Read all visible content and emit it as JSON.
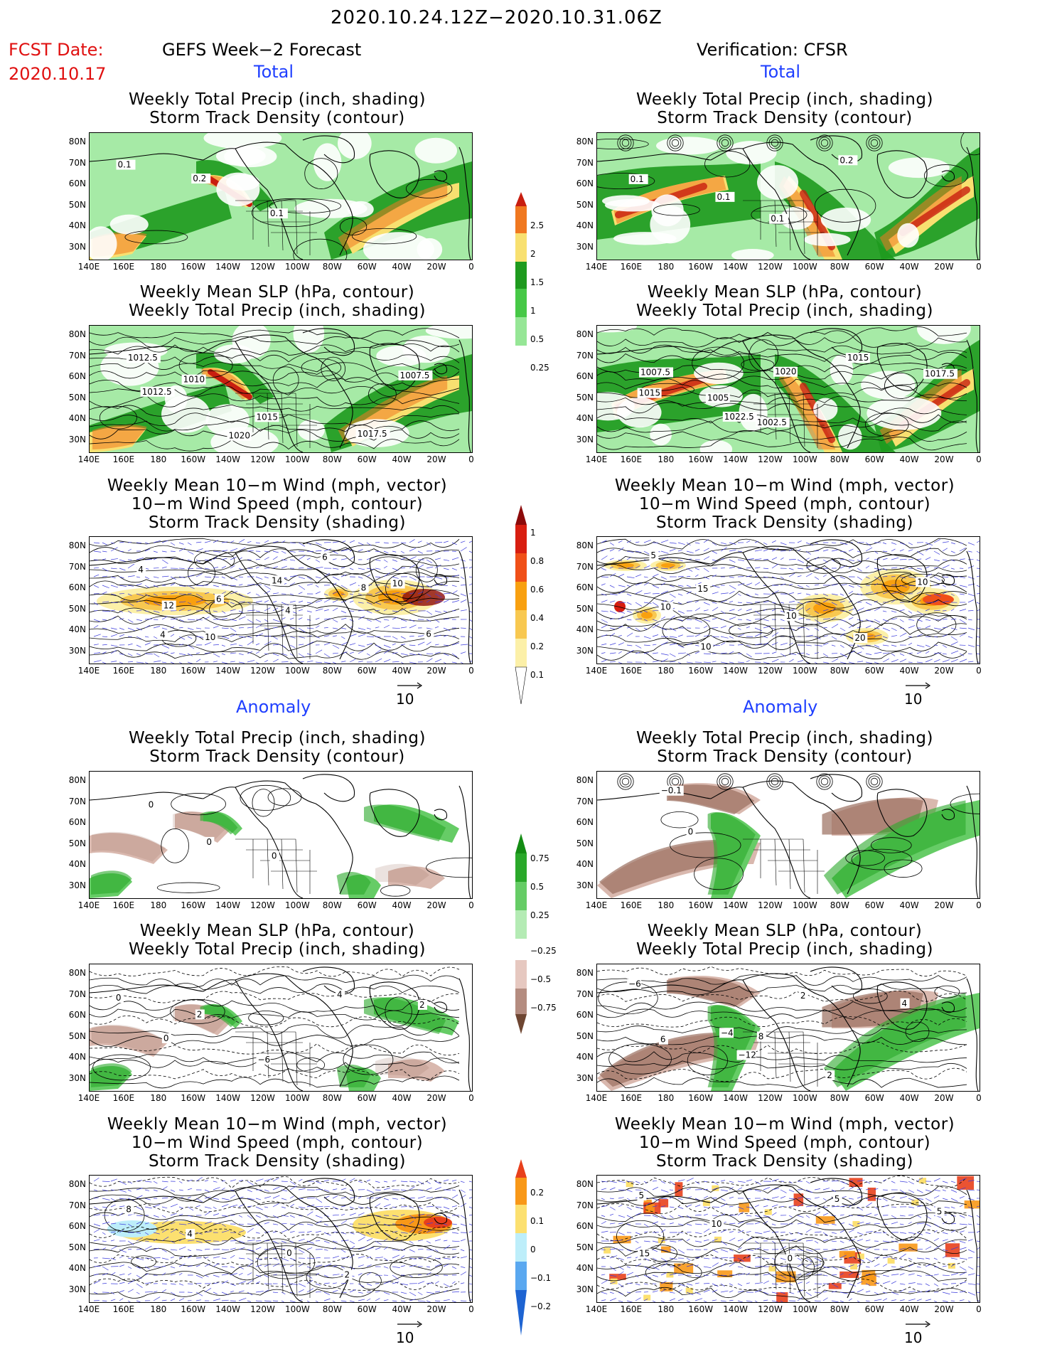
{
  "header": {
    "period": "2020.10.24.12Z−2020.10.31.06Z",
    "fcst_label": "FCST Date:",
    "fcst_date": "2020.10.17",
    "left_title": "GEFS Week−2 Forecast",
    "right_title": "Verification: CFSR"
  },
  "sections": {
    "total": "Total",
    "anomaly": "Anomaly"
  },
  "panel_titles": {
    "precip_storm": [
      "Weekly Total Precip (inch, shading)",
      "Storm Track Density (contour)"
    ],
    "slp_precip": [
      "Weekly Mean SLP (hPa, contour)",
      "Weekly Total Precip (inch, shading)"
    ],
    "wind": [
      "Weekly Mean 10−m Wind (mph, vector)",
      "10−m Wind Speed (mph, contour)",
      "Storm Track Density (shading)"
    ]
  },
  "axes": {
    "lat_labels": [
      "80N",
      "70N",
      "60N",
      "50N",
      "40N",
      "30N"
    ],
    "lon_labels": [
      "140E",
      "160E",
      "180",
      "160W",
      "140W",
      "120W",
      "100W",
      "80W",
      "60W",
      "40W",
      "20W",
      "0"
    ]
  },
  "vector_ref": "10",
  "colorbars": {
    "precip_total": [
      "2.5",
      "2",
      "1.5",
      "1",
      "0.5",
      "0.25"
    ],
    "storm_total": [
      "1",
      "0.8",
      "0.6",
      "0.4",
      "0.2",
      "0.1"
    ],
    "precip_anom": [
      "0.75",
      "0.5",
      "0.25",
      "−0.25",
      "−0.5",
      "−0.75"
    ],
    "storm_anom": [
      "0.2",
      "0.1",
      "0",
      "−0.1",
      "−0.2"
    ]
  },
  "contour_labels": {
    "p1_left": [
      "0.1",
      "0.2",
      "0.1"
    ],
    "p1_right": [
      "0.1",
      "0.1",
      "0.1",
      "0.2"
    ],
    "p2_left": [
      "1012.5",
      "1010",
      "1015",
      "1017.5",
      "1007.5",
      "1012.5",
      "1020"
    ],
    "p2_right": [
      "1007.5",
      "1005",
      "1002.5",
      "1015",
      "1017.5",
      "1015",
      "1022.5",
      "1020"
    ],
    "p3_left": [
      "4",
      "6",
      "4",
      "6",
      "10",
      "12",
      "10",
      "14",
      "8",
      "6",
      "4"
    ],
    "p3_right": [
      "5",
      "15",
      "10",
      "20",
      "10",
      "10",
      "10"
    ],
    "p4_left": [
      "0",
      "0",
      "0"
    ],
    "p4_right": [
      "−0.1",
      "0"
    ],
    "p5_left": [
      "0",
      "2",
      "−6",
      "4",
      "2",
      "0"
    ],
    "p5_right": [
      "−6",
      "−4",
      "8",
      "2",
      "4",
      "6",
      "−12",
      "2"
    ],
    "p6_left": [
      "8",
      "4",
      "0",
      "2"
    ],
    "p6_right": [
      "5",
      "10",
      "0",
      "5",
      "5",
      "15"
    ]
  }
}
